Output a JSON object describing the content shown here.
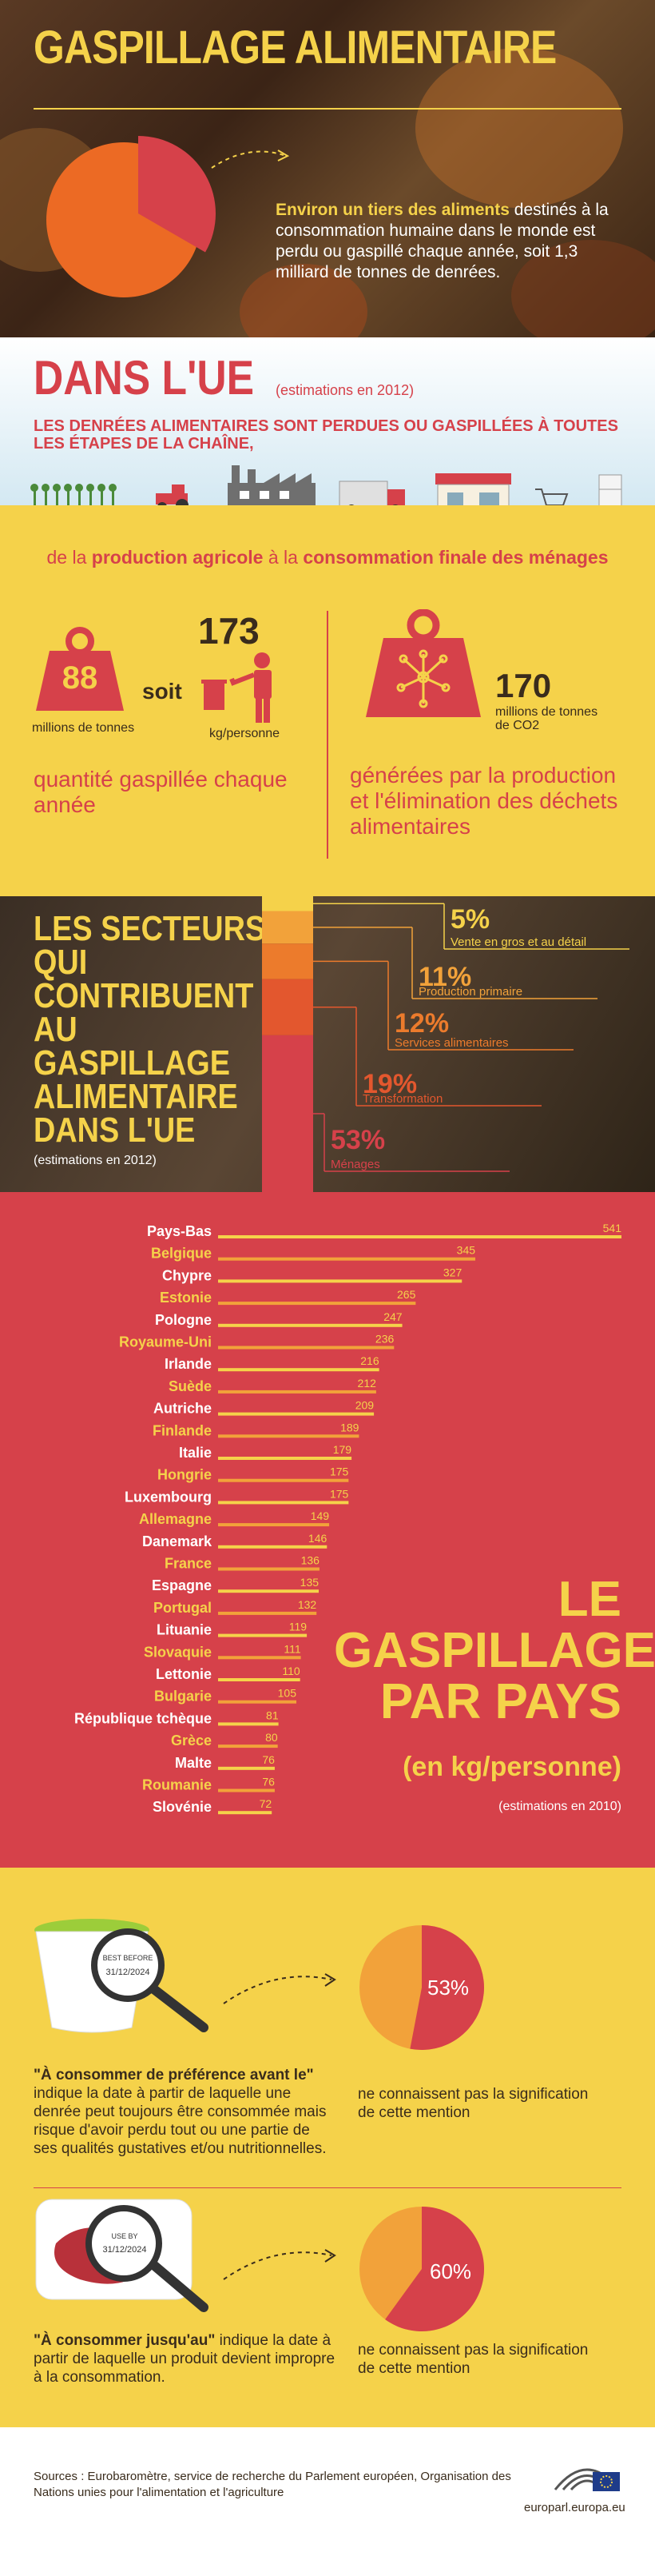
{
  "header": {
    "title": "GASPILLAGE ALIMENTAIRE",
    "intro_highlight": "Environ un tiers des aliments",
    "intro_rest": "destinés à la consommation humaine dans le monde est perdu ou gaspillé chaque année, soit 1,3 milliard de tonnes de denrées."
  },
  "eu": {
    "title": "DANS L'UE",
    "estimate": "(estimations en 2012)",
    "subtitle": "LES DENRÉES ALIMENTAIRES SONT PERDUES OU GASPILLÉES À TOUTES LES ÉTAPES DE LA CHAÎNE,",
    "chain_prefix": "de la",
    "chain_b1": "production agricole",
    "chain_mid": "à la",
    "chain_b2": "consommation finale des ménages"
  },
  "stats": {
    "weight_value": "88",
    "weight_unit": "millions de tonnes",
    "soit": "soit",
    "per_person_value": "173",
    "per_person_unit": "kg/personne",
    "left_caption": "quantité gaspillée chaque année",
    "co2_value": "170",
    "co2_unit": "millions de tonnes de CO2",
    "right_caption": "générées par la production et l'élimination des déchets alimentaires"
  },
  "sectors": {
    "title_lines": [
      "LES SECTEURS",
      "QUI",
      "CONTRIBUENT",
      "AU",
      "GASPILLAGE",
      "ALIMENTAIRE",
      "DANS L'UE"
    ],
    "estimate": "(estimations en 2012)",
    "items": [
      {
        "pct": "5%",
        "label": "Vente en gros et au détail",
        "value": 5,
        "color": "#f5d24a"
      },
      {
        "pct": "11%",
        "label": "Production primaire",
        "value": 11,
        "color": "#f2a23a"
      },
      {
        "pct": "12%",
        "label": "Services alimentaires",
        "value": 12,
        "color": "#ec7b2c"
      },
      {
        "pct": "19%",
        "label": "Transformation",
        "value": 19,
        "color": "#e3572e"
      },
      {
        "pct": "53%",
        "label": "Ménages",
        "value": 53,
        "color": "#d6414a"
      }
    ]
  },
  "chart_data": {
    "type": "bar",
    "title": "LE GASPILLAGE PAR PAYS",
    "subtitle": "(en kg/personne)",
    "note": "(estimations en 2010)",
    "categories": [
      "Pays-Bas",
      "Belgique",
      "Chypre",
      "Estonie",
      "Pologne",
      "Royaume-Uni",
      "Irlande",
      "Suède",
      "Autriche",
      "Finlande",
      "Italie",
      "Hongrie",
      "Luxembourg",
      "Allemagne",
      "Danemark",
      "France",
      "Espagne",
      "Portugal",
      "Lituanie",
      "Slovaquie",
      "Lettonie",
      "Bulgarie",
      "République tchèque",
      "Grèce",
      "Malte",
      "Roumanie",
      "Slovénie"
    ],
    "values": [
      541,
      345,
      327,
      265,
      247,
      236,
      216,
      212,
      209,
      189,
      179,
      175,
      175,
      149,
      146,
      136,
      135,
      132,
      119,
      111,
      110,
      105,
      81,
      80,
      76,
      76,
      72
    ],
    "highlight": [
      true,
      false,
      true,
      false,
      true,
      false,
      true,
      false,
      true,
      false,
      true,
      false,
      true,
      false,
      true,
      false,
      true,
      false,
      true,
      false,
      true,
      false,
      true,
      false,
      true,
      false,
      true
    ]
  },
  "best_before": {
    "card_label": "BEST BEFORE",
    "card_date": "31/12/2024",
    "title": "\"À consommer de préférence avant le\"",
    "text": "indique la date à partir de laquelle une denrée peut toujours être consommée mais risque d'avoir perdu tout ou une partie de ses qualités gustatives et/ou nutritionnelles.",
    "pct_label": "53%",
    "pct_value": 53,
    "caption": "ne connaissent pas la signification de cette mention"
  },
  "use_by": {
    "card_label": "USE BY",
    "card_date": "31/12/2024",
    "title": "\"À consommer jusqu'au\"",
    "text": "indique la date à partir de laquelle un produit devient impropre à la consommation.",
    "pct_label": "60%",
    "pct_value": 60,
    "caption": "ne connaissent pas la signification de cette mention"
  },
  "footer": {
    "sources": "Sources : Eurobaromètre, service de recherche du Parlement européen, Organisation des Nations unies pour l'alimentation et l'agriculture",
    "site": "europarl.europa.eu"
  },
  "colors": {
    "red": "#d6414a",
    "yellow": "#f5d24a",
    "orange": "#ec7b2c",
    "dark": "#3a2c1c"
  }
}
